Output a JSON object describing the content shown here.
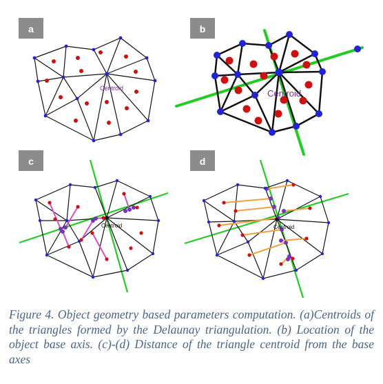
{
  "panels": [
    {
      "label": "a",
      "centroid_text": "Centroid"
    },
    {
      "label": "b",
      "centroid_text": "Centroid"
    },
    {
      "label": "c",
      "centroid_text": "Centroid"
    },
    {
      "label": "d",
      "centroid_text": "Centroid"
    }
  ],
  "caption": "Figure 4. Object geometry based parameters computation. (a)Centroids of the triangles formed by the Delaunay triangulation. (b) Location of the object base axis. (c)-(d) Distance of the triangle centroid from the base axes",
  "colors": {
    "label_box": "#8c8c8c",
    "vertex": "#2323d2",
    "triangle_centroid": "#cc1111",
    "base_axis": "#22cc22",
    "centroid_text": "#7a2a9e",
    "distance_line_c": "#d050d0",
    "distance_line_d": "#f0a040",
    "foot_point": "#7a30c0",
    "caption_text": "#4a6488"
  }
}
